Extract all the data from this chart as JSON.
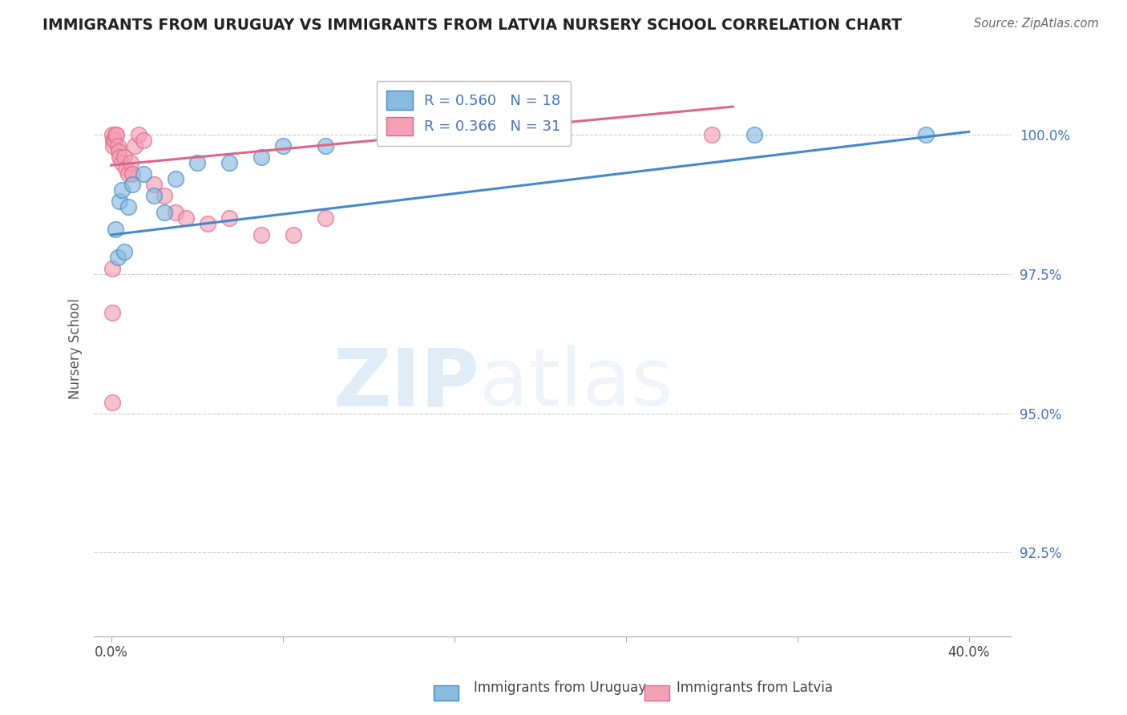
{
  "title": "IMMIGRANTS FROM URUGUAY VS IMMIGRANTS FROM LATVIA NURSERY SCHOOL CORRELATION CHART",
  "source": "Source: ZipAtlas.com",
  "ylabel": "Nursery School",
  "y_tick_vals": [
    92.5,
    95.0,
    97.5,
    100.0
  ],
  "x_min": -0.8,
  "x_max": 42.0,
  "y_min": 91.0,
  "y_max": 101.3,
  "legend_label_uruguay": "R = 0.560   N = 18",
  "legend_label_latvia": "R = 0.366   N = 31",
  "color_uruguay": "#88bbdd",
  "color_latvia": "#f4a0b5",
  "trendline_color_uruguay": "#4488cc",
  "trendline_color_latvia": "#dd6688",
  "watermark_zip": "ZIP",
  "watermark_atlas": "atlas",
  "background_color": "#ffffff",
  "uruguay_x": [
    0.2,
    0.4,
    0.5,
    0.8,
    1.0,
    1.5,
    2.0,
    2.5,
    3.0,
    4.0,
    5.5,
    7.0,
    8.0,
    10.0,
    30.0,
    0.3,
    0.6,
    38.0
  ],
  "uruguay_y": [
    98.3,
    98.8,
    99.0,
    98.7,
    99.1,
    99.3,
    98.9,
    98.6,
    99.2,
    99.5,
    99.5,
    99.6,
    99.8,
    99.8,
    100.0,
    97.8,
    97.9,
    100.0
  ],
  "latvia_x": [
    0.05,
    0.08,
    0.1,
    0.15,
    0.2,
    0.25,
    0.3,
    0.35,
    0.4,
    0.5,
    0.6,
    0.7,
    0.8,
    0.9,
    1.0,
    1.1,
    1.3,
    1.5,
    2.0,
    2.5,
    3.0,
    3.5,
    4.5,
    5.5,
    7.0,
    8.5,
    0.05,
    0.05,
    0.05,
    28.0,
    10.0
  ],
  "latvia_y": [
    100.0,
    99.9,
    99.8,
    99.9,
    100.0,
    100.0,
    99.8,
    99.7,
    99.6,
    99.5,
    99.6,
    99.4,
    99.3,
    99.5,
    99.3,
    99.8,
    100.0,
    99.9,
    99.1,
    98.9,
    98.6,
    98.5,
    98.4,
    98.5,
    98.2,
    98.2,
    96.8,
    95.2,
    97.6,
    100.0,
    98.5
  ],
  "trend_u_x0": 0.0,
  "trend_u_y0": 98.2,
  "trend_u_x1": 40.0,
  "trend_u_y1": 100.05,
  "trend_l_x0": 0.0,
  "trend_l_y0": 99.45,
  "trend_l_x1": 29.0,
  "trend_l_y1": 100.5
}
